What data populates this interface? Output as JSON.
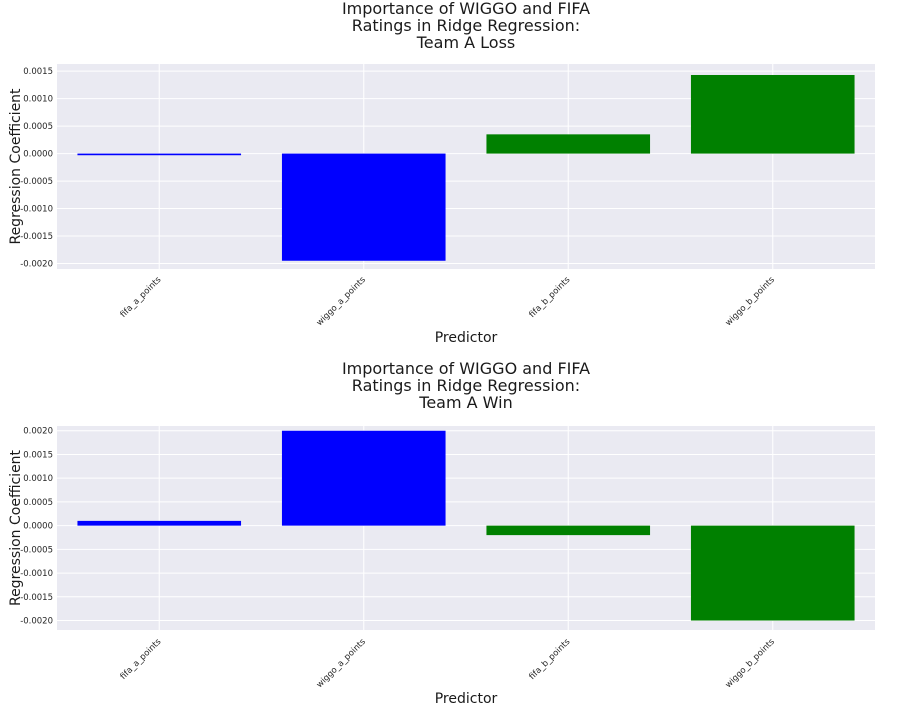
{
  "chart_data": [
    {
      "type": "bar",
      "title": "Importance of WIGGO and FIFA\nRatings in Ridge Regression:\nTeam A Loss",
      "xlabel": "Predictor",
      "ylabel": "Regression Coefficient",
      "categories": [
        "fifa_a_points",
        "wiggo_a_points",
        "fifa_b_points",
        "wiggo_b_points"
      ],
      "values": [
        -3e-05,
        -0.00195,
        0.00035,
        0.00143
      ],
      "colors": [
        "#0000ff",
        "#0000ff",
        "#008000",
        "#008000"
      ],
      "ylim": [
        -0.0021,
        0.00163
      ],
      "yticks": [
        -0.002,
        -0.0015,
        -0.001,
        -0.0005,
        0,
        0.0005,
        0.001,
        0.0015
      ],
      "ytick_labels": [
        "-0.0020",
        "-0.0015",
        "-0.0010",
        "-0.0005",
        "0.0000",
        "0.0005",
        "0.0010",
        "0.0015"
      ],
      "grid": true,
      "background": "#eaeaf2"
    },
    {
      "type": "bar",
      "title": "Importance of WIGGO and FIFA\nRatings in Ridge Regression:\nTeam A Win",
      "xlabel": "Predictor",
      "ylabel": "Regression Coefficient",
      "categories": [
        "fifa_a_points",
        "wiggo_a_points",
        "fifa_b_points",
        "wiggo_b_points"
      ],
      "values": [
        0.0001,
        0.002,
        -0.0002,
        -0.002
      ],
      "colors": [
        "#0000ff",
        "#0000ff",
        "#008000",
        "#008000"
      ],
      "ylim": [
        -0.0022,
        0.0021
      ],
      "yticks": [
        -0.002,
        -0.0015,
        -0.001,
        -0.0005,
        0,
        0.0005,
        0.001,
        0.0015,
        0.002
      ],
      "ytick_labels": [
        "-0.0020",
        "-0.0015",
        "-0.0010",
        "-0.0005",
        "0.0000",
        "0.0005",
        "0.0010",
        "0.0015",
        "0.0020"
      ],
      "grid": true,
      "background": "#eaeaf2"
    }
  ]
}
